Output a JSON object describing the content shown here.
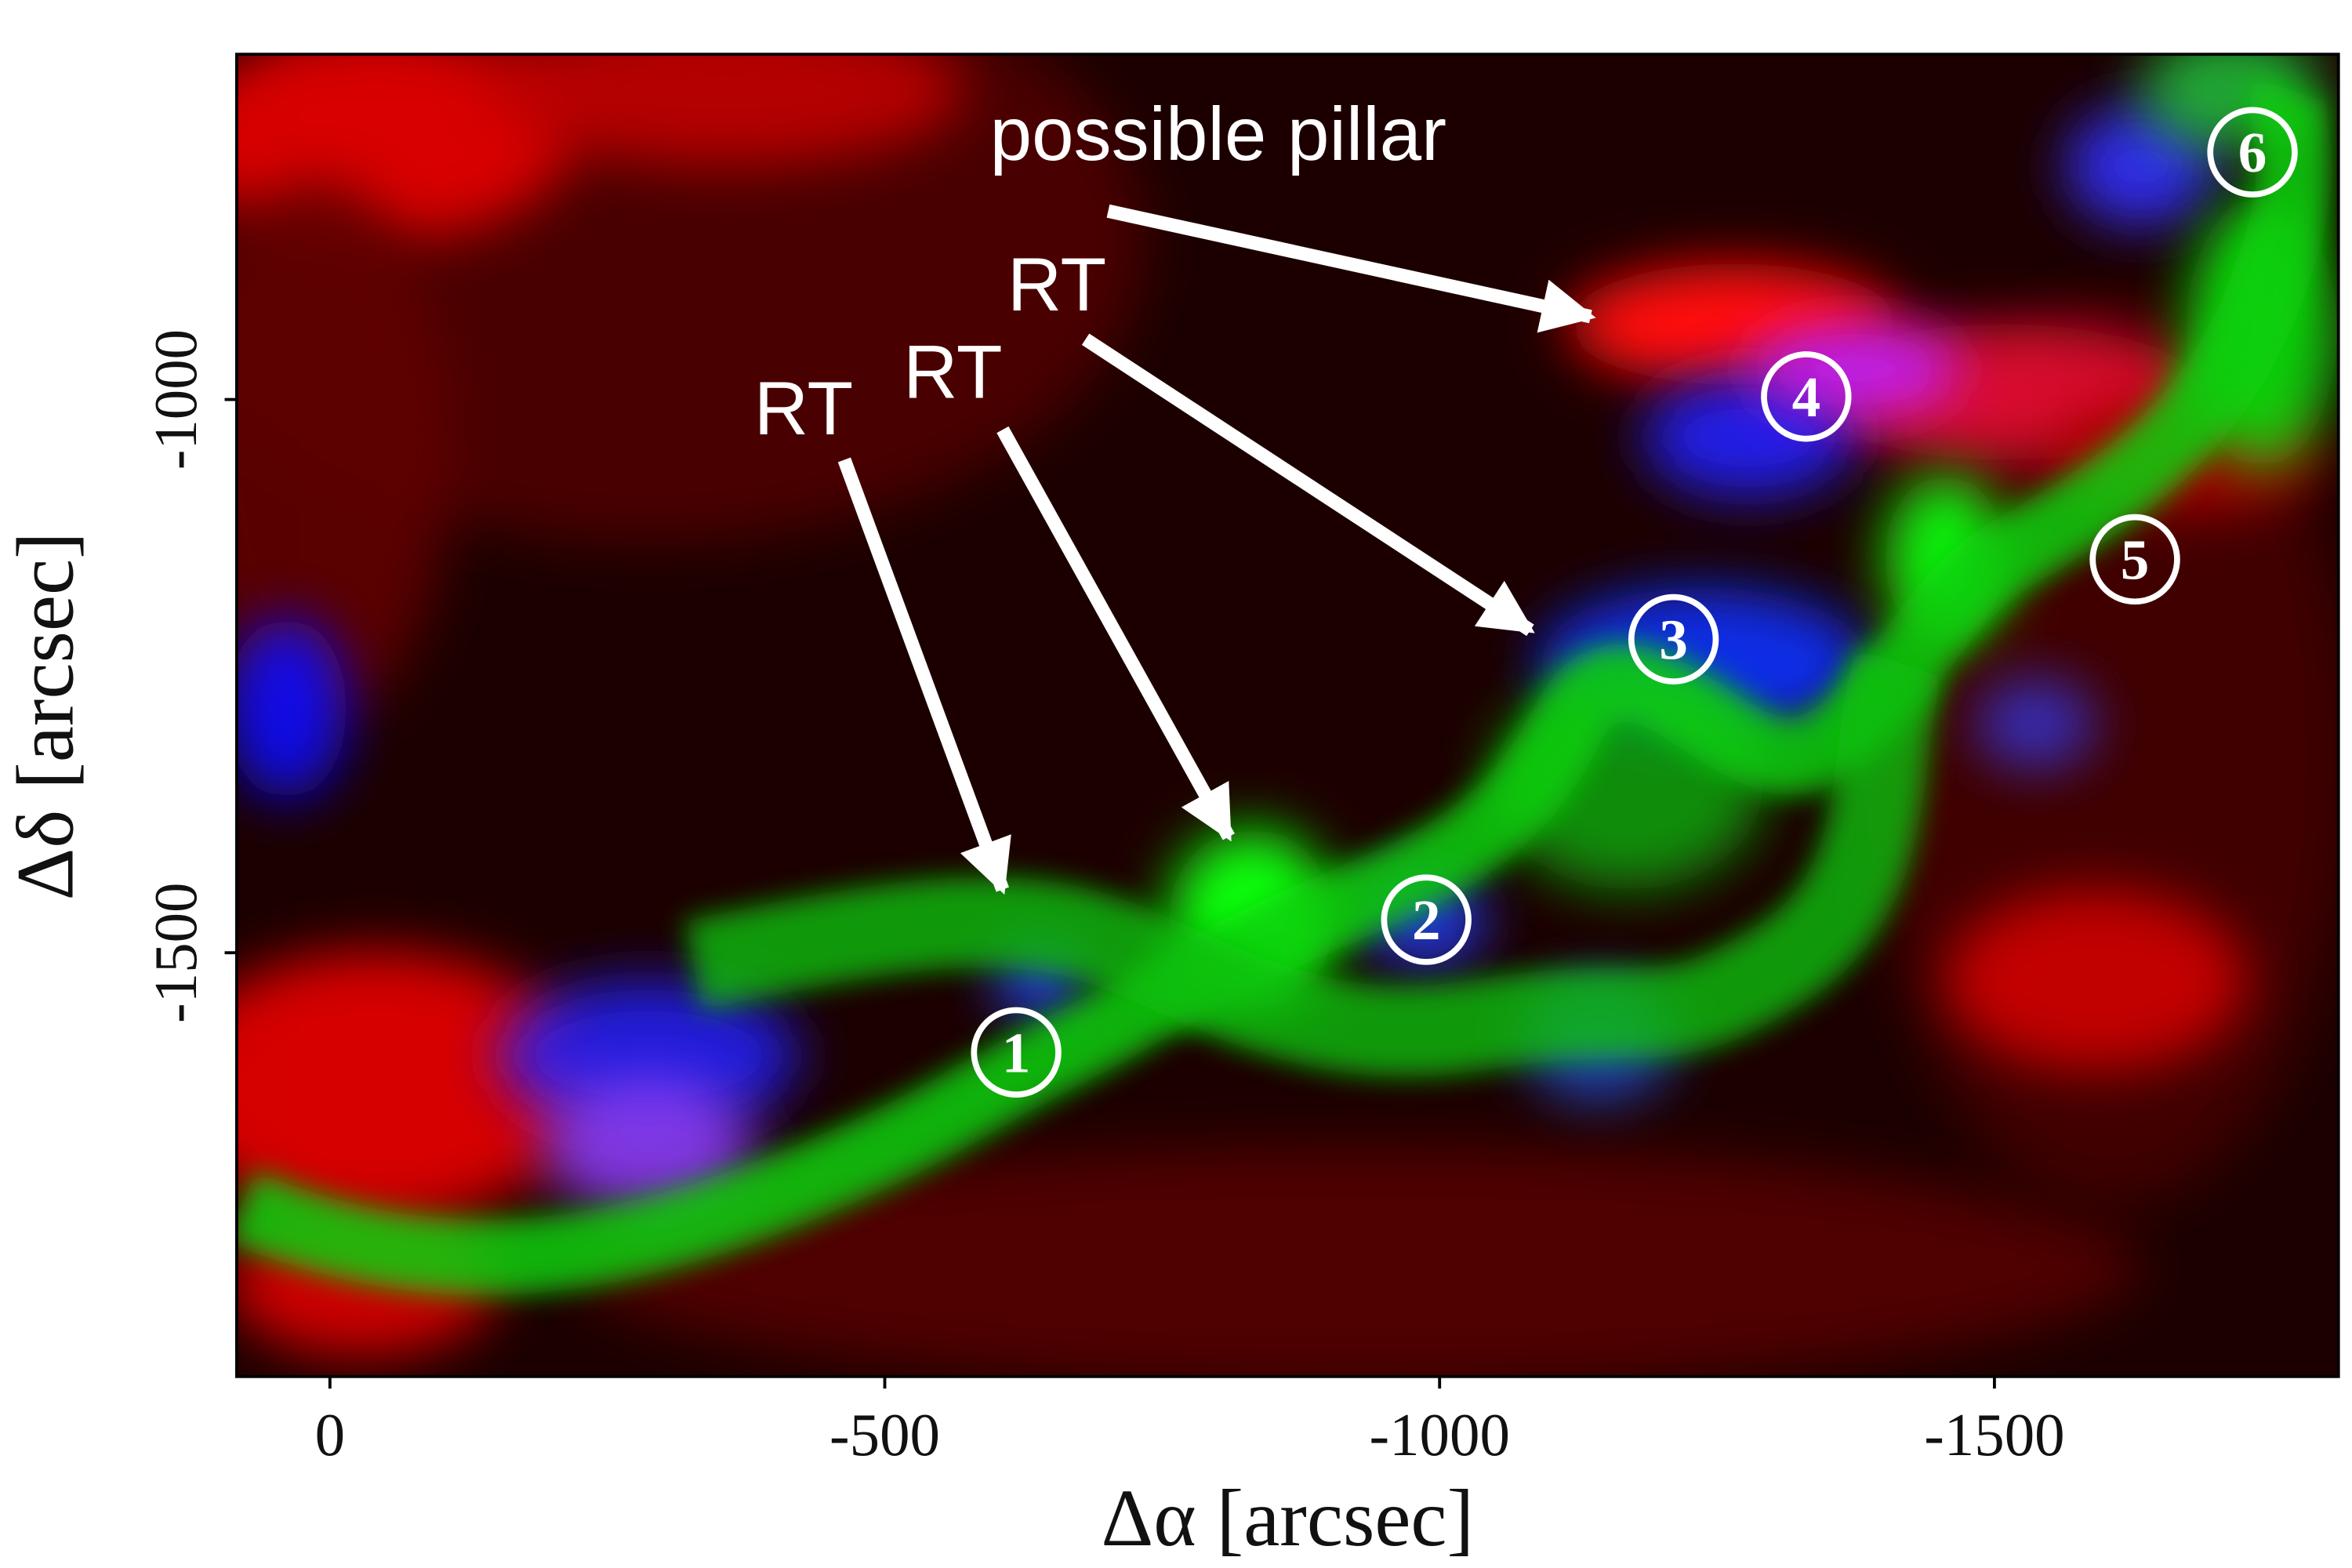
{
  "chart_data": {
    "type": "image",
    "xlabel": "Δα [arcsec]",
    "ylabel": "Δδ [arcsec]",
    "xlim": [
      84,
      -1810
    ],
    "ylim": [
      -1883,
      -688
    ],
    "xticks": [
      0,
      -500,
      -1000,
      -1500
    ],
    "yticks": [
      -1000,
      -1500
    ],
    "annotations": [
      "possible pillar",
      "RT",
      "RT",
      "RT"
    ],
    "regions": [
      "1",
      "2",
      "3",
      "4",
      "5",
      "6"
    ]
  }
}
